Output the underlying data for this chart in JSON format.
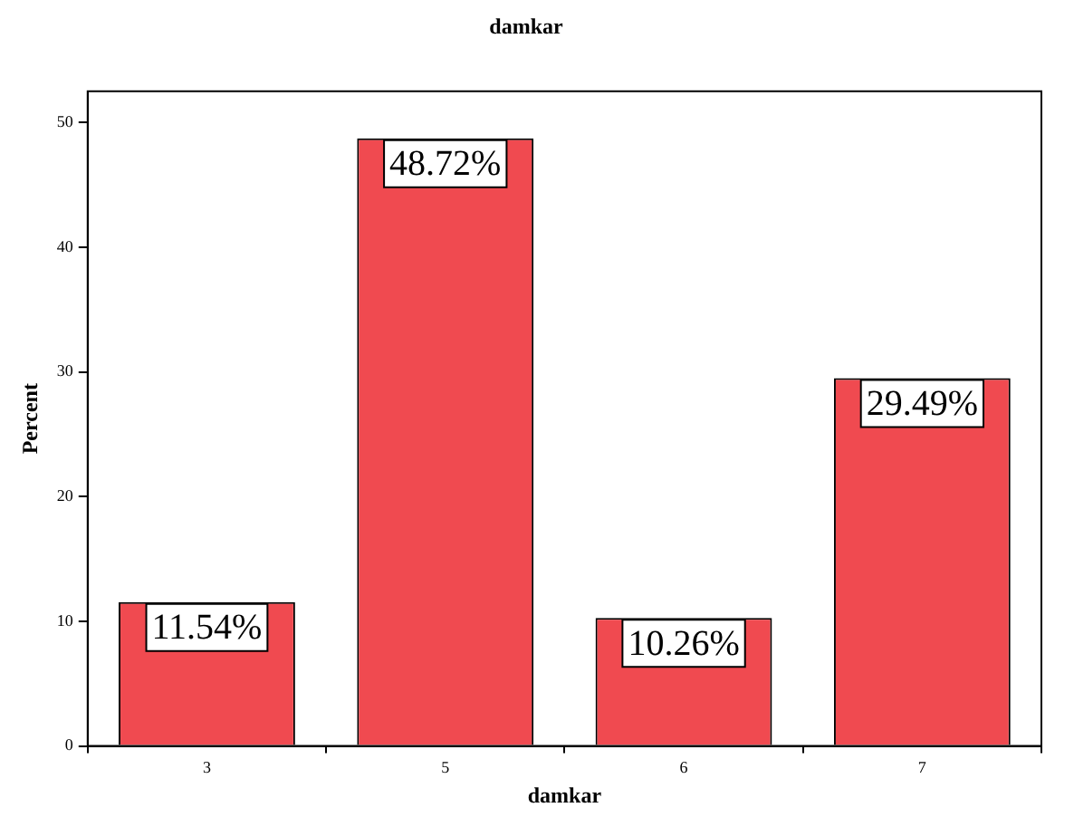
{
  "chart_data": {
    "type": "bar",
    "title": "damkar",
    "xlabel": "damkar",
    "ylabel": "Percent",
    "categories": [
      "3",
      "5",
      "6",
      "7"
    ],
    "values": [
      11.54,
      48.72,
      10.26,
      29.49
    ],
    "value_labels": [
      "11.54%",
      "48.72%",
      "10.26%",
      "29.49%"
    ],
    "color": "#f04a50",
    "ylim": [
      0,
      52.5
    ],
    "yticks": [
      0,
      10,
      20,
      30,
      40,
      50
    ],
    "grid": false,
    "legend": false
  }
}
